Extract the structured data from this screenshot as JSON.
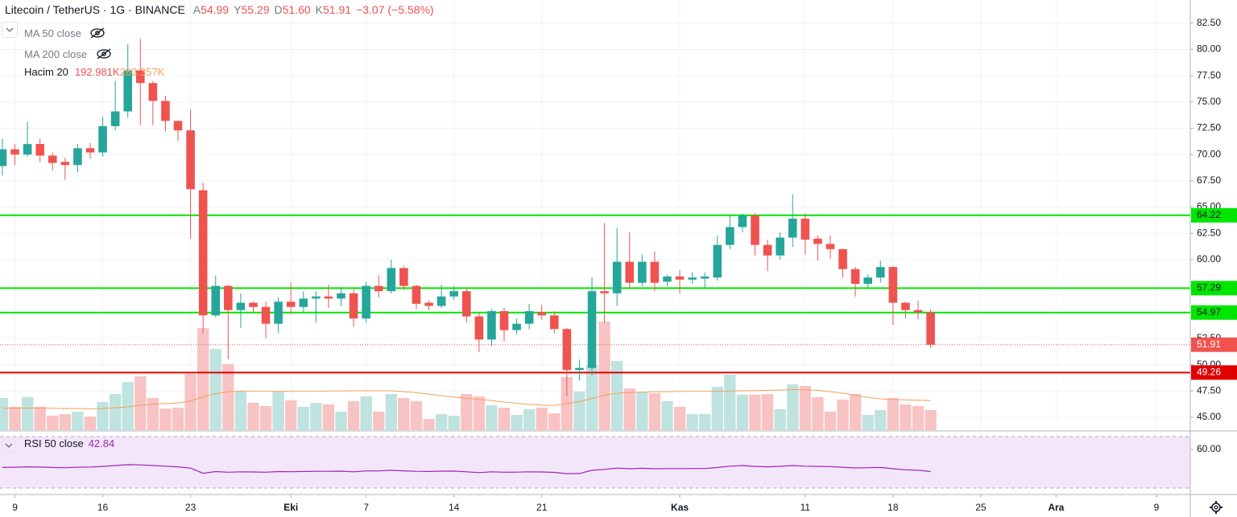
{
  "chart_data": {
    "type": "candlestick",
    "title": "Litecoin / TetherUS · 1G · BINANCE",
    "header": [
      {
        "letter": "A",
        "text": "54.99"
      },
      {
        "letter": "Y",
        "text": "55.29"
      },
      {
        "letter": "D",
        "text": "51.60"
      },
      {
        "letter": "K",
        "text": "51.91"
      }
    ],
    "change_label": "−3.07 (−5.58%)",
    "indicators": [
      "MA 50 close",
      "MA 200 close",
      "Hacim 20",
      "RSI 50 close"
    ],
    "volume_label": "192.981K",
    "volume_ma_label": "283.357K",
    "up_color": "#26a69a",
    "down_color": "#ef5350",
    "volume_up_color": "#bfe3de",
    "volume_down_color": "#f8c3c3",
    "volume_ma_color": "#f5a05a",
    "rsi_color": "#9c27b0",
    "grid": true,
    "xlim": [
      -0.19,
      94.7
    ],
    "xticks": [
      {
        "value": 1,
        "label": "9"
      },
      {
        "value": 8,
        "label": "16"
      },
      {
        "value": 15,
        "label": "23"
      },
      {
        "value": 23,
        "label": "Eki"
      },
      {
        "value": 29,
        "label": "7"
      },
      {
        "value": 36,
        "label": "14"
      },
      {
        "value": 43,
        "label": "21"
      },
      {
        "value": 54,
        "label": "Kas"
      },
      {
        "value": 64,
        "label": "11"
      },
      {
        "value": 71,
        "label": "18"
      },
      {
        "value": 78,
        "label": "25"
      },
      {
        "value": 84,
        "label": "Ara"
      },
      {
        "value": 92,
        "label": "9"
      }
    ],
    "ylim": [
      43.78,
      84.7
    ],
    "yticks": [
      {
        "value": 45,
        "label": "45.00"
      },
      {
        "value": 47.5,
        "label": "47.50"
      },
      {
        "value": 50,
        "label": "50.00"
      },
      {
        "value": 52.5,
        "label": "52.50"
      },
      {
        "value": 55,
        "label": "55.00"
      },
      {
        "value": 57.5,
        "label": "57.50"
      },
      {
        "value": 60,
        "label": "60.00"
      },
      {
        "value": 62.5,
        "label": "62.50"
      },
      {
        "value": 65,
        "label": "65.00"
      },
      {
        "value": 67.5,
        "label": "67.50"
      },
      {
        "value": 70,
        "label": "70.00"
      },
      {
        "value": 72.5,
        "label": "72.50"
      },
      {
        "value": 75,
        "label": "75.00"
      },
      {
        "value": 77.5,
        "label": "77.50"
      },
      {
        "value": 80,
        "label": "80.00"
      },
      {
        "value": 82.5,
        "label": "82.50"
      }
    ],
    "y3lim": [
      0,
      4130
    ],
    "rsi_lim": [
      25,
      73.75
    ],
    "rsi_ticks": [
      {
        "value": 60,
        "label": "60.00"
      }
    ],
    "rsi_bands": [
      30,
      70
    ],
    "levels": [
      {
        "value": 64.22,
        "color": "#00e600"
      },
      {
        "value": 57.29,
        "color": "#00e600"
      },
      {
        "value": 54.97,
        "color": "#00e600"
      },
      {
        "value": 49.26,
        "color": "#e00000"
      }
    ],
    "open": [
      68.9,
      70.5,
      70.0,
      71.0,
      69.9,
      69.3,
      69.0,
      70.6,
      70.2,
      72.7,
      74.1,
      78.0,
      76.8,
      75.1,
      73.2,
      72.3,
      66.6,
      54.7,
      57.5,
      55.2,
      55.9,
      55.5,
      53.9,
      56.0,
      55.5,
      56.3,
      56.5,
      56.3,
      56.8,
      54.4,
      57.5,
      57.0,
      59.2,
      57.5,
      55.9,
      55.6,
      56.5,
      57.0,
      54.6,
      52.4,
      55.1,
      53.3,
      53.9,
      55.0,
      54.7,
      53.4,
      49.5,
      49.7,
      57.0,
      56.8,
      59.8,
      57.8,
      59.8,
      57.9,
      58.4,
      58.1,
      58.2,
      58.3,
      61.4,
      63.1,
      64.2,
      61.4,
      60.4,
      62.1,
      63.9,
      62.0,
      61.5,
      61.0,
      59.1,
      57.7,
      58.3,
      59.3,
      55.9,
      55.2,
      54.99
    ],
    "high": [
      71.5,
      71.0,
      73.1,
      71.5,
      70.2,
      69.7,
      71.0,
      71.1,
      73.6,
      77.0,
      80.5,
      81.0,
      77.0,
      75.6,
      73.2,
      74.3,
      67.3,
      58.5,
      57.6,
      56.8,
      56.0,
      56.0,
      56.4,
      57.8,
      57.0,
      57.0,
      57.6,
      57.4,
      57.2,
      57.9,
      58.5,
      60.0,
      59.4,
      57.6,
      56.1,
      57.6,
      57.5,
      57.3,
      54.9,
      55.3,
      55.4,
      54.4,
      55.8,
      55.7,
      55.1,
      53.5,
      50.5,
      58.3,
      63.5,
      63.0,
      62.6,
      60.5,
      60.8,
      58.6,
      59.0,
      58.8,
      58.8,
      62.3,
      64.2,
      64.4,
      64.4,
      61.9,
      62.6,
      66.2,
      64.4,
      62.3,
      62.3,
      61.0,
      59.3,
      58.6,
      59.9,
      59.4,
      56.0,
      56.1,
      55.29
    ],
    "low": [
      68.0,
      69.0,
      69.8,
      69.3,
      68.5,
      67.6,
      68.3,
      69.6,
      69.8,
      72.3,
      73.5,
      72.8,
      72.8,
      72.2,
      71.3,
      62.0,
      53.0,
      54.5,
      50.5,
      53.5,
      55.0,
      52.5,
      53.0,
      54.8,
      55.0,
      54.0,
      55.4,
      55.6,
      53.6,
      54.0,
      56.4,
      56.8,
      57.1,
      55.3,
      55.2,
      55.4,
      56.2,
      54.0,
      51.2,
      51.8,
      52.2,
      52.9,
      53.4,
      54.3,
      53.0,
      47.0,
      48.5,
      49.0,
      54.0,
      55.6,
      57.3,
      57.5,
      57.0,
      57.5,
      56.8,
      57.7,
      57.3,
      58.0,
      61.0,
      62.6,
      60.4,
      58.9,
      60.0,
      61.2,
      60.5,
      59.9,
      60.1,
      58.3,
      56.5,
      57.3,
      57.8,
      53.8,
      54.4,
      54.3,
      51.6
    ],
    "close": [
      70.5,
      70.0,
      71.0,
      69.9,
      69.2,
      69.0,
      70.6,
      70.2,
      72.7,
      74.1,
      78.0,
      76.8,
      75.1,
      73.2,
      72.3,
      66.7,
      54.7,
      57.5,
      55.2,
      55.9,
      55.5,
      53.9,
      56.0,
      55.5,
      56.3,
      56.5,
      56.3,
      56.8,
      54.4,
      57.5,
      57.0,
      59.2,
      57.5,
      55.8,
      55.6,
      56.5,
      57.0,
      54.6,
      52.4,
      55.1,
      53.3,
      53.9,
      55.1,
      54.7,
      53.4,
      49.5,
      49.7,
      57.0,
      56.8,
      59.8,
      57.8,
      59.8,
      57.8,
      58.4,
      58.1,
      58.3,
      58.4,
      61.4,
      63.1,
      64.2,
      61.4,
      60.4,
      62.1,
      63.9,
      61.9,
      61.5,
      61.0,
      59.1,
      57.7,
      58.3,
      59.3,
      55.9,
      55.2,
      55.0,
      51.91
    ],
    "volume": [
      309,
      224,
      317,
      224,
      139,
      154,
      178,
      131,
      270,
      347,
      463,
      517,
      309,
      208,
      216,
      540,
      980,
      780,
      633,
      378,
      262,
      232,
      371,
      286,
      224,
      262,
      247,
      178,
      278,
      324,
      178,
      347,
      309,
      278,
      108,
      154,
      139,
      347,
      324,
      239,
      216,
      147,
      201,
      216,
      162,
      510,
      371,
      625,
      1042,
      664,
      401,
      363,
      355,
      278,
      224,
      154,
      154,
      417,
      533,
      340,
      340,
      347,
      201,
      440,
      425,
      317,
      178,
      293,
      347,
      147,
      193,
      309,
      247,
      232,
      192.981
    ],
    "volume_ma": [
      210,
      210,
      212,
      212,
      210,
      208,
      208,
      206,
      208,
      215,
      225,
      240,
      250,
      255,
      262,
      280,
      320,
      350,
      370,
      375,
      375,
      373,
      372,
      372,
      372,
      374,
      376,
      376,
      378,
      378,
      378,
      378,
      370,
      360,
      345,
      330,
      318,
      305,
      295,
      285,
      270,
      258,
      248,
      240,
      238,
      255,
      275,
      305,
      335,
      355,
      362,
      365,
      368,
      370,
      372,
      372,
      372,
      372,
      375,
      378,
      380,
      382,
      385,
      390,
      388,
      382,
      370,
      355,
      335,
      315,
      300,
      295,
      290,
      287,
      283.357
    ],
    "rsi": [
      46.0,
      46.2,
      46.5,
      46.3,
      46.0,
      45.8,
      46.2,
      46.4,
      46.8,
      47.5,
      48.2,
      48.0,
      47.5,
      47.0,
      46.5,
      45.5,
      41.5,
      42.8,
      42.3,
      42.6,
      42.5,
      42.3,
      42.8,
      42.7,
      42.9,
      43.0,
      43.0,
      43.1,
      42.6,
      43.3,
      43.3,
      43.8,
      43.4,
      43.0,
      42.9,
      43.1,
      43.2,
      42.6,
      42.0,
      42.6,
      42.3,
      42.4,
      42.6,
      42.5,
      42.2,
      41.2,
      41.3,
      43.8,
      44.5,
      45.5,
      45.0,
      45.4,
      45.0,
      45.1,
      45.1,
      45.2,
      45.2,
      46.0,
      47.0,
      47.5,
      46.8,
      46.5,
      46.9,
      47.5,
      47.0,
      46.8,
      46.7,
      46.2,
      45.6,
      45.8,
      46.0,
      45.0,
      44.2,
      43.9,
      42.84
    ]
  }
}
